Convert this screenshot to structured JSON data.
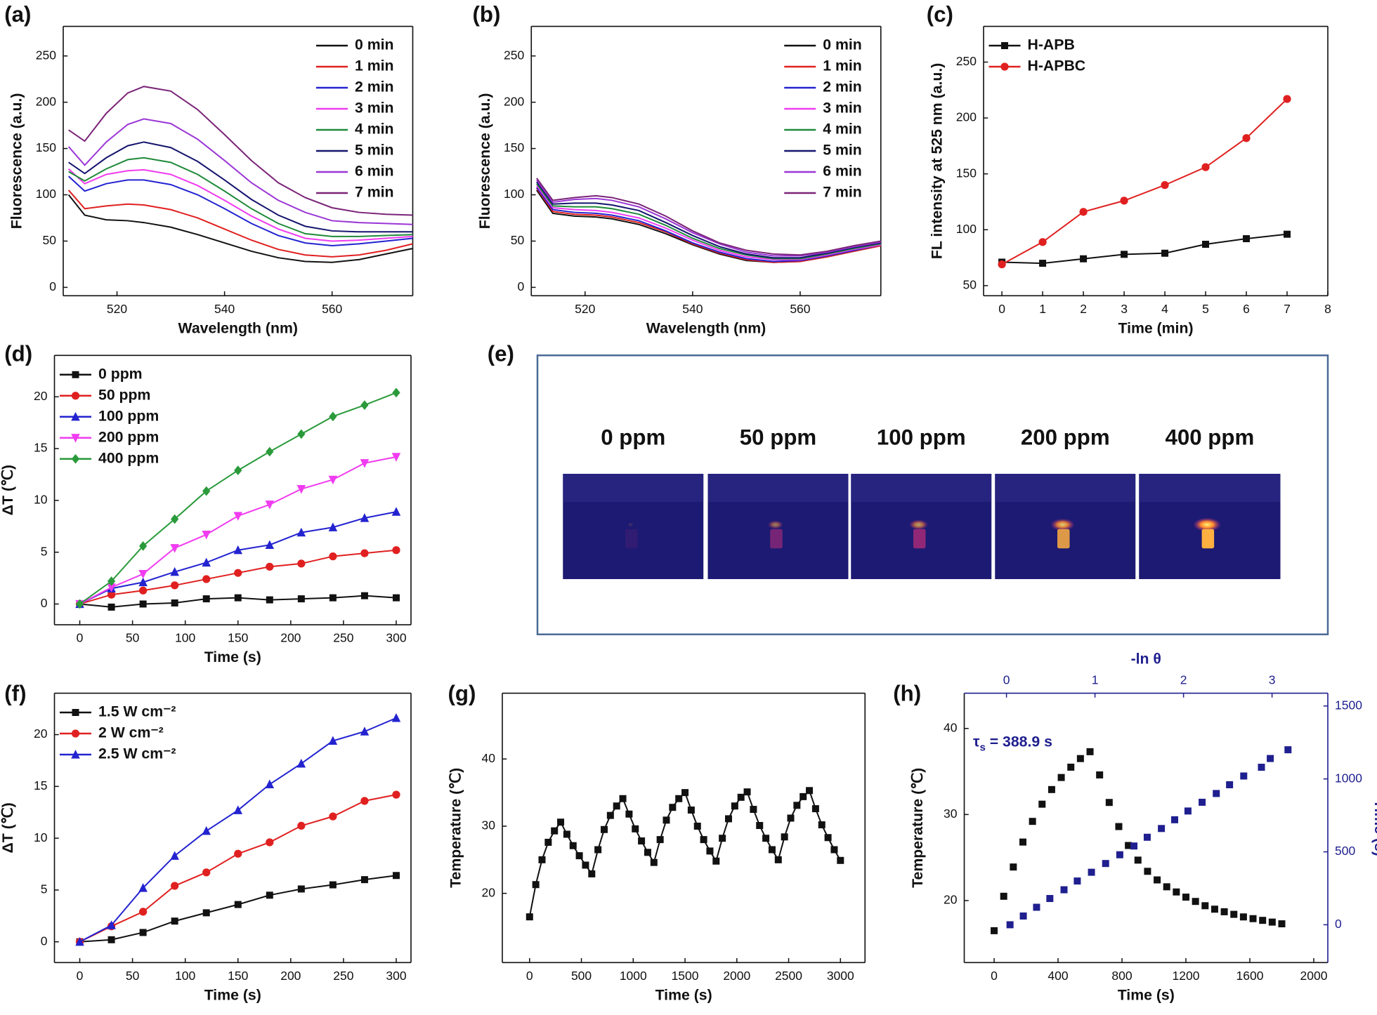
{
  "chart_data": [
    {
      "type": "line",
      "label": "(a)",
      "xlabel": "Wavelength (nm)",
      "ylabel": "Fluorescence (a.u.)",
      "xlim": [
        510,
        575
      ],
      "ylim": [
        -9,
        282
      ],
      "xticks": [
        520,
        540,
        560
      ],
      "yticks": [
        0,
        50,
        100,
        150,
        200,
        250
      ],
      "legend": "upper right",
      "x": [
        511,
        514,
        518,
        522,
        525,
        530,
        535,
        540,
        545,
        550,
        555,
        560,
        565,
        570,
        575
      ],
      "series": [
        {
          "name": "0 min",
          "color": "#111111",
          "values": [
            100,
            78,
            73,
            72,
            70,
            65,
            57,
            48,
            39,
            32,
            28,
            27,
            30,
            36,
            42
          ]
        },
        {
          "name": "1 min",
          "color": "#e02020",
          "values": [
            105,
            85,
            88,
            90,
            89,
            84,
            75,
            63,
            51,
            41,
            35,
            33,
            35,
            40,
            47
          ]
        },
        {
          "name": "2 min",
          "color": "#2323d0",
          "values": [
            120,
            104,
            112,
            116,
            116,
            111,
            100,
            85,
            69,
            56,
            48,
            45,
            47,
            50,
            53
          ]
        },
        {
          "name": "3 min",
          "color": "#f03cf0",
          "values": [
            128,
            112,
            122,
            126,
            127,
            122,
            110,
            94,
            77,
            63,
            53,
            50,
            51,
            53,
            55
          ]
        },
        {
          "name": "4 min",
          "color": "#1f8a3a",
          "values": [
            125,
            115,
            128,
            138,
            140,
            135,
            122,
            104,
            85,
            69,
            58,
            55,
            55,
            56,
            57
          ]
        },
        {
          "name": "5 min",
          "color": "#14146e",
          "values": [
            135,
            123,
            140,
            153,
            157,
            151,
            136,
            116,
            95,
            78,
            66,
            61,
            60,
            60,
            60
          ]
        },
        {
          "name": "6 min",
          "color": "#9b36d6",
          "values": [
            152,
            132,
            157,
            176,
            182,
            177,
            160,
            137,
            113,
            94,
            81,
            72,
            70,
            69,
            68
          ]
        },
        {
          "name": "7 min",
          "color": "#7a2478",
          "values": [
            170,
            158,
            188,
            210,
            217,
            212,
            192,
            165,
            137,
            113,
            97,
            86,
            81,
            79,
            78
          ]
        }
      ]
    },
    {
      "type": "line",
      "label": "(b)",
      "xlabel": "Wavelength (nm)",
      "ylabel": "Fluorescence (a.u.)",
      "xlim": [
        510,
        575
      ],
      "ylim": [
        -9,
        282
      ],
      "xticks": [
        520,
        540,
        560
      ],
      "yticks": [
        0,
        50,
        100,
        150,
        200,
        250
      ],
      "legend": "upper right",
      "x": [
        511,
        514,
        518,
        522,
        525,
        530,
        535,
        540,
        545,
        550,
        555,
        560,
        565,
        570,
        575
      ],
      "series": [
        {
          "name": "0 min",
          "color": "#111111",
          "values": [
            105,
            80,
            77,
            76,
            74,
            68,
            58,
            46,
            36,
            29,
            27,
            28,
            33,
            39,
            45
          ]
        },
        {
          "name": "1 min",
          "color": "#e02020",
          "values": [
            107,
            82,
            79,
            78,
            76,
            70,
            60,
            47,
            37,
            30,
            27,
            28,
            33,
            39,
            45
          ]
        },
        {
          "name": "2 min",
          "color": "#2323d0",
          "values": [
            108,
            84,
            81,
            80,
            78,
            72,
            61,
            48,
            38,
            31,
            28,
            29,
            34,
            40,
            46
          ]
        },
        {
          "name": "3 min",
          "color": "#f03cf0",
          "values": [
            110,
            86,
            84,
            83,
            81,
            75,
            64,
            51,
            40,
            33,
            30,
            30,
            35,
            41,
            46
          ]
        },
        {
          "name": "4 min",
          "color": "#1f8a3a",
          "values": [
            112,
            88,
            87,
            87,
            85,
            79,
            67,
            53,
            42,
            35,
            31,
            31,
            36,
            42,
            47
          ]
        },
        {
          "name": "5 min",
          "color": "#14146e",
          "values": [
            114,
            90,
            91,
            91,
            89,
            83,
            70,
            56,
            44,
            36,
            32,
            32,
            37,
            43,
            48
          ]
        },
        {
          "name": "6 min",
          "color": "#9b36d6",
          "values": [
            116,
            92,
            95,
            96,
            94,
            87,
            74,
            59,
            47,
            38,
            34,
            34,
            38,
            44,
            49
          ]
        },
        {
          "name": "7 min",
          "color": "#7a2478",
          "values": [
            118,
            94,
            97,
            99,
            97,
            90,
            77,
            61,
            48,
            40,
            36,
            35,
            39,
            45,
            50
          ]
        }
      ]
    },
    {
      "type": "line",
      "label": "(c)",
      "xlabel": "Time (min)",
      "ylabel": "FL intensity at 525 nm (a.u.)",
      "xlim": [
        -0.45,
        8
      ],
      "ylim": [
        41,
        282
      ],
      "xticks": [
        0,
        1,
        2,
        3,
        4,
        5,
        6,
        7,
        8
      ],
      "yticks": [
        50,
        100,
        150,
        200,
        250
      ],
      "legend": "upper left",
      "x": [
        0,
        1,
        2,
        3,
        4,
        5,
        6,
        7
      ],
      "series": [
        {
          "name": "H-APB",
          "color": "#111111",
          "marker": "square",
          "values": [
            71,
            70,
            74,
            78,
            79,
            87,
            92,
            96
          ]
        },
        {
          "name": "H-APBC",
          "color": "#e02020",
          "marker": "circle",
          "values": [
            69,
            89,
            116,
            126,
            140,
            156,
            182,
            217
          ]
        }
      ]
    },
    {
      "type": "line",
      "label": "(d)",
      "xlabel": "Time (s)",
      "ylabel": "ΔT (℃)",
      "xlim": [
        -24,
        314
      ],
      "ylim": [
        -2,
        24
      ],
      "xticks": [
        0,
        50,
        100,
        150,
        200,
        250,
        300
      ],
      "yticks": [
        0,
        5,
        10,
        15,
        20
      ],
      "legend": "upper left",
      "x": [
        0,
        30,
        60,
        90,
        120,
        150,
        180,
        210,
        240,
        270,
        300
      ],
      "series": [
        {
          "name": "0 ppm",
          "color": "#111111",
          "marker": "square",
          "values": [
            0,
            -0.3,
            0,
            0.1,
            0.5,
            0.6,
            0.4,
            0.5,
            0.6,
            0.8,
            0.6
          ]
        },
        {
          "name": "50 ppm",
          "color": "#e02020",
          "marker": "circle",
          "values": [
            0,
            0.9,
            1.3,
            1.8,
            2.4,
            3.0,
            3.6,
            3.9,
            4.6,
            4.9,
            5.2
          ]
        },
        {
          "name": "100 ppm",
          "color": "#2323d0",
          "marker": "triangle-up",
          "values": [
            0,
            1.5,
            2.1,
            3.1,
            4.0,
            5.2,
            5.7,
            6.9,
            7.4,
            8.3,
            8.9
          ]
        },
        {
          "name": "200 ppm",
          "color": "#f03cf0",
          "marker": "triangle-down",
          "values": [
            0,
            1.6,
            2.9,
            5.4,
            6.7,
            8.5,
            9.6,
            11.1,
            12.0,
            13.6,
            14.2
          ]
        },
        {
          "name": "400 ppm",
          "color": "#2a9a3a",
          "marker": "diamond",
          "values": [
            0,
            2.2,
            5.6,
            8.2,
            10.9,
            12.9,
            14.7,
            16.4,
            18.1,
            19.2,
            20.4
          ]
        }
      ]
    },
    {
      "type": "thermal-images",
      "label": "(e)",
      "categories": [
        "0 ppm",
        "50 ppm",
        "100 ppm",
        "200 ppm",
        "400 ppm"
      ]
    },
    {
      "type": "line",
      "label": "(f)",
      "xlabel": "Time (s)",
      "ylabel": "ΔT (℃)",
      "xlim": [
        -24,
        314
      ],
      "ylim": [
        -2,
        24
      ],
      "xticks": [
        0,
        50,
        100,
        150,
        200,
        250,
        300
      ],
      "yticks": [
        0,
        5,
        10,
        15,
        20
      ],
      "legend": "upper left",
      "x": [
        0,
        30,
        60,
        90,
        120,
        150,
        180,
        210,
        240,
        270,
        300
      ],
      "series": [
        {
          "name": "1.5 W cm⁻²",
          "color": "#111111",
          "marker": "square",
          "values": [
            0,
            0.2,
            0.9,
            2.0,
            2.8,
            3.6,
            4.5,
            5.1,
            5.5,
            6.0,
            6.4
          ]
        },
        {
          "name": "2 W cm⁻²",
          "color": "#e02020",
          "marker": "circle",
          "values": [
            0,
            1.5,
            2.9,
            5.4,
            6.7,
            8.5,
            9.6,
            11.2,
            12.1,
            13.6,
            14.2
          ]
        },
        {
          "name": "2.5 W cm⁻²",
          "color": "#2323d0",
          "marker": "triangle-up",
          "values": [
            0,
            1.6,
            5.2,
            8.3,
            10.7,
            12.7,
            15.2,
            17.2,
            19.4,
            20.3,
            21.6
          ]
        }
      ]
    },
    {
      "type": "line",
      "label": "(g)",
      "xlabel": "Time (s)",
      "ylabel": "Temperature (℃)",
      "xlim": [
        -263,
        3237
      ],
      "ylim": [
        9.7,
        49.8
      ],
      "xticks": [
        0,
        500,
        1000,
        1500,
        2000,
        2500,
        3000
      ],
      "yticks": [
        20,
        30,
        40
      ],
      "x": [
        0,
        60,
        120,
        180,
        240,
        300,
        360,
        420,
        480,
        540,
        600,
        660,
        720,
        780,
        840,
        900,
        960,
        1020,
        1080,
        1140,
        1200,
        1260,
        1320,
        1380,
        1440,
        1500,
        1560,
        1620,
        1680,
        1740,
        1800,
        1860,
        1920,
        1980,
        2040,
        2100,
        2160,
        2220,
        2280,
        2340,
        2400,
        2460,
        2520,
        2580,
        2640,
        2700,
        2760,
        2820,
        2880,
        2940,
        3000
      ],
      "series": [
        {
          "color": "#111111",
          "marker": "square",
          "values": [
            16.5,
            21.3,
            25.0,
            27.6,
            29.3,
            30.6,
            28.8,
            27.1,
            25.6,
            24.2,
            22.9,
            26.5,
            29.5,
            31.6,
            33.0,
            34.1,
            31.8,
            29.6,
            27.8,
            26.1,
            24.6,
            28.0,
            30.9,
            32.8,
            34.1,
            35.0,
            32.4,
            30.0,
            28.0,
            26.3,
            24.8,
            28.2,
            31.1,
            33.0,
            34.3,
            35.1,
            32.5,
            30.1,
            28.2,
            26.5,
            25.0,
            28.4,
            31.2,
            33.1,
            34.4,
            35.3,
            32.6,
            30.2,
            28.3,
            26.5,
            24.9
          ]
        }
      ]
    },
    {
      "type": "scatter",
      "label": "(h)",
      "xlabel": "Time (s)",
      "ylabel": "Temperature (℃)",
      "x2label": "-ln θ",
      "y2label": "Time (s)",
      "secondary_axis_color": "#1f1f8f",
      "xlim": [
        -187,
        2088
      ],
      "ylim": [
        12.8,
        44.1
      ],
      "x2lim": [
        -0.477,
        3.63
      ],
      "y2lim": [
        -259,
        1588
      ],
      "xticks": [
        0,
        400,
        800,
        1200,
        1600,
        2000
      ],
      "yticks": [
        20,
        30,
        40
      ],
      "x2ticks": [
        0,
        1,
        2,
        3
      ],
      "y2ticks": [
        0,
        500,
        1000,
        1500
      ],
      "annotation": [
        "τ",
        "s",
        " = 388.9 s"
      ],
      "x": [
        0,
        60,
        120,
        180,
        240,
        300,
        360,
        420,
        480,
        540,
        600,
        660,
        720,
        780,
        840,
        900,
        960,
        1020,
        1080,
        1140,
        1200,
        1260,
        1320,
        1380,
        1440,
        1500,
        1560,
        1620,
        1680,
        1740,
        1800
      ],
      "series": [
        {
          "color": "#111111",
          "marker": "square",
          "values": [
            16.5,
            20.5,
            23.9,
            26.8,
            29.2,
            31.2,
            32.9,
            34.3,
            35.5,
            36.5,
            37.3,
            34.6,
            31.4,
            28.6,
            26.4,
            24.7,
            23.4,
            22.4,
            21.6,
            21.0,
            20.4,
            19.9,
            19.4,
            19.0,
            18.7,
            18.4,
            18.1,
            17.9,
            17.7,
            17.5,
            17.3
          ]
        },
        {
          "color": "#1f1f8f",
          "marker": "square",
          "axis": "y2",
          "xaxis": "x2",
          "x": [
            0.04,
            0.19,
            0.34,
            0.49,
            0.65,
            0.8,
            0.96,
            1.12,
            1.28,
            1.44,
            1.59,
            1.75,
            1.9,
            2.05,
            2.21,
            2.37,
            2.52,
            2.68,
            2.88,
            2.98,
            3.18
          ],
          "values": [
            0,
            60,
            120,
            180,
            240,
            300,
            360,
            420,
            480,
            540,
            600,
            660,
            720,
            780,
            840,
            900,
            960,
            1020,
            1080,
            1140,
            1200
          ]
        }
      ]
    }
  ]
}
